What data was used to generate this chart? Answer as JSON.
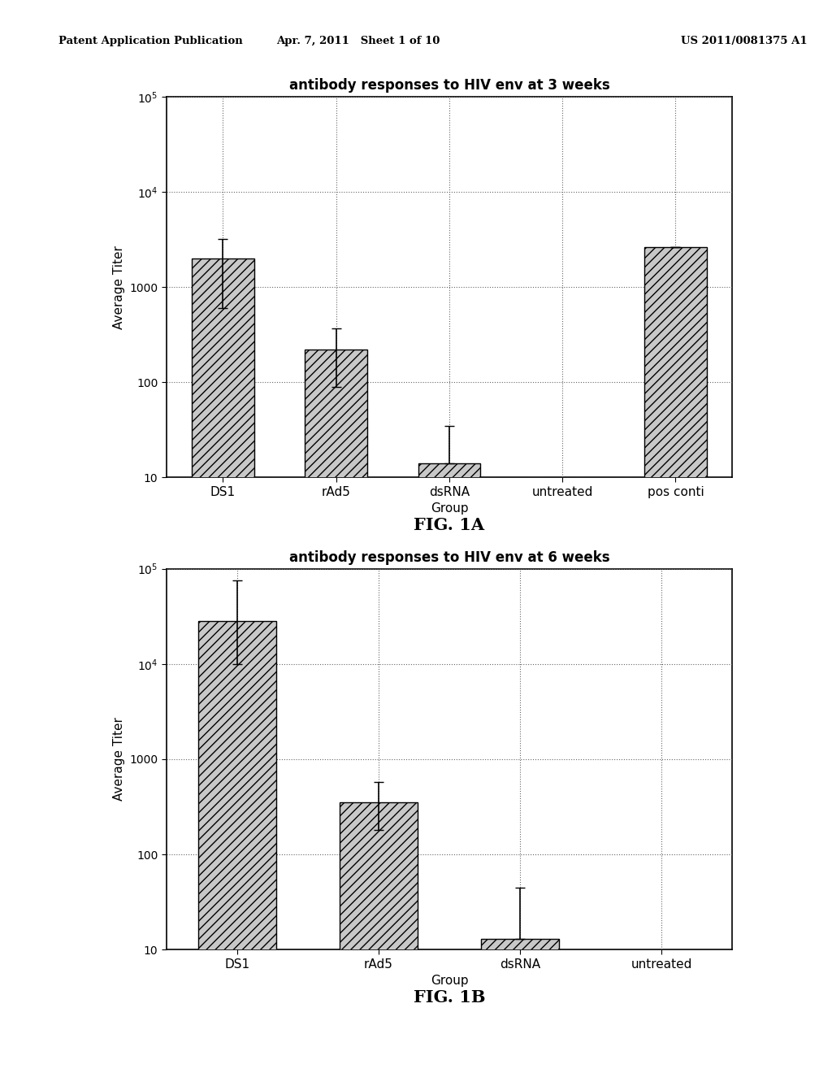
{
  "fig1a": {
    "title": "antibody responses to HIV env at 3 weeks",
    "categories": [
      "DS1",
      "rAd5",
      "dsRNA",
      "untreated",
      "pos conti"
    ],
    "values": [
      2000,
      220,
      14,
      null,
      2600
    ],
    "yerr_upper": [
      3200,
      370,
      35,
      null,
      null
    ],
    "yerr_lower": [
      600,
      90,
      null,
      null,
      null
    ],
    "ylim": [
      10,
      100000
    ],
    "ylabel": "Average Titer",
    "xlabel": "Group"
  },
  "fig1b": {
    "title": "antibody responses to HIV env at 6 weeks",
    "categories": [
      "DS1",
      "rAd5",
      "dsRNA",
      "untreated"
    ],
    "values": [
      28000,
      350,
      13,
      null
    ],
    "yerr_upper": [
      75000,
      580,
      45,
      null
    ],
    "yerr_lower": [
      10000,
      180,
      null,
      null
    ],
    "ylim": [
      10,
      100000
    ],
    "ylabel": "Average Titer",
    "xlabel": "Group"
  },
  "fig1a_label": "FIG. 1A",
  "fig1b_label": "FIG. 1B",
  "header_left": "Patent Application Publication",
  "header_mid": "Apr. 7, 2011   Sheet 1 of 10",
  "header_right": "US 2011/0081375 A1",
  "bar_color": "#c8c8c8",
  "bar_edge_color": "#000000",
  "hatch_pattern": "///",
  "background_color": "#ffffff",
  "grid_color": "#666666",
  "bar_width": 0.55
}
